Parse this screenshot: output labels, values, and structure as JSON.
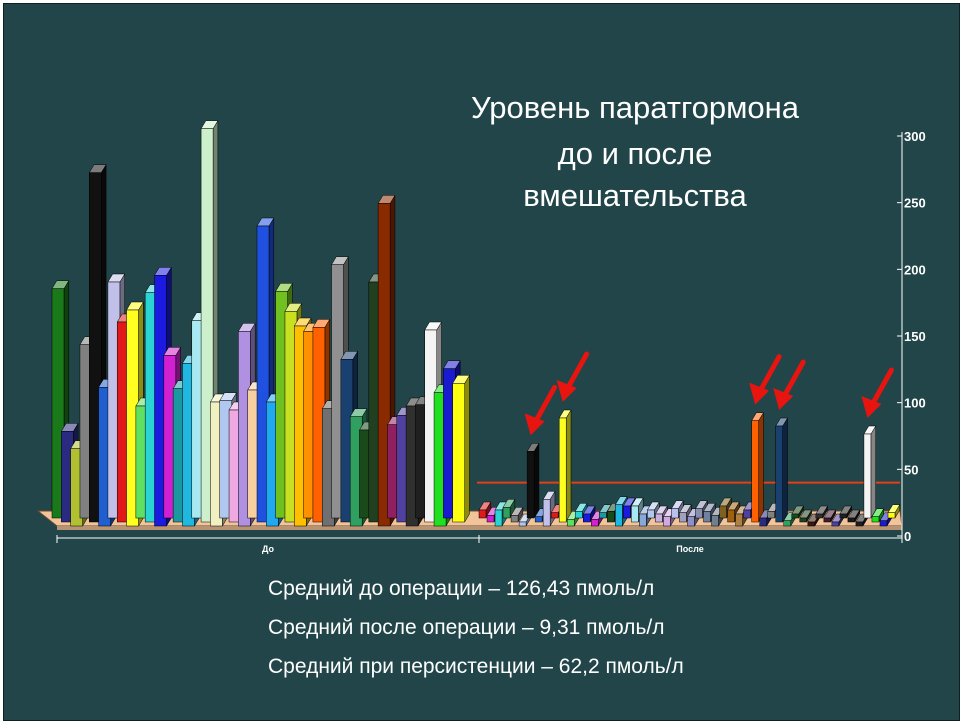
{
  "slide": {
    "title_lines": [
      "Уровень паратгормона",
      "до и после",
      "вмешательства"
    ],
    "stats": [
      "Средний до операции – 126,43 пмоль/л",
      "Средний после операции – 9,31 пмоль/л",
      "Средний при персистенции – 62,2 пмоль/л"
    ],
    "colors": {
      "background": "#214548",
      "floor": "#f2c49a",
      "threshold": "#e0401a",
      "arrow": "#e8140f",
      "axis": "#ffffff"
    }
  },
  "chart_data": {
    "type": "bar",
    "categories": [
      "До",
      "После"
    ],
    "ylim": [
      0,
      300
    ],
    "yticks": [
      0,
      50,
      100,
      150,
      200,
      250,
      300
    ],
    "threshold": 37,
    "series_groups": [
      {
        "category": "До",
        "values": [
          172,
          68,
          58,
          130,
          262,
          104,
          177,
          150,
          162,
          84,
          172,
          188,
          122,
          100,
          122,
          148,
          295,
          93,
          88,
          84,
          146,
          96,
          222,
          93,
          170,
          158,
          150,
          140,
          146,
          88,
          190,
          122,
          82,
          66,
          180,
          242,
          70,
          80,
          90,
          85,
          144,
          100,
          112,
          104
        ],
        "colors": [
          "#1a7a1a",
          "#2a2a80",
          "#b0c030",
          "#808080",
          "#111111",
          "#1f5fd0",
          "#c0c0e8",
          "#e01a1a",
          "#ffff20",
          "#60e060",
          "#2ad4d4",
          "#1a1ae0",
          "#d020d0",
          "#1a9aa0",
          "#20b8e0",
          "#a8e8f0",
          "#ccf0cc",
          "#f0f0c0",
          "#b0c8f0",
          "#f0a8e0",
          "#b090e0",
          "#f8d0a0",
          "#2050e0",
          "#20a8f0",
          "#70c020",
          "#c8e020",
          "#ffc000",
          "#ff9000",
          "#ff6000",
          "#707070",
          "#909090",
          "#1a4070",
          "#30a060",
          "#1a4a1a",
          "#204020",
          "#8a2a00",
          "#902060",
          "#5040a0",
          "#303030",
          "#202020",
          "#f4f4f4",
          "#20e020",
          "#1a1ad0",
          "#ffff10"
        ]
      },
      {
        "category": "После",
        "values": [
          6,
          5,
          12,
          8,
          5,
          3,
          50,
          4,
          20,
          4,
          78,
          5,
          5,
          6,
          5,
          4,
          8,
          16,
          9,
          12,
          9,
          6,
          6,
          7,
          7,
          7,
          7,
          7,
          8,
          8,
          9,
          9,
          9,
          6,
          76,
          6,
          5,
          72,
          4,
          3,
          3,
          3,
          3,
          3,
          3,
          3,
          3,
          3,
          63,
          4,
          4,
          4
        ],
        "colors": [
          "#e01a1a",
          "#d020d0",
          "#2ad4d4",
          "#30a060",
          "#808080",
          "#b0c8f0",
          "#111111",
          "#1f5fd0",
          "#c0c0e8",
          "#e01a1a",
          "#ffff20",
          "#60e060",
          "#2ad4d4",
          "#1a1ae0",
          "#d020d0",
          "#1a9aa0",
          "#1a4a1a",
          "#20b8e0",
          "#1a1ae0",
          "#a8e8f0",
          "#88a8d8",
          "#b0c8f0",
          "#c8b0e0",
          "#d0a8e8",
          "#b8c0f0",
          "#a0a0c0",
          "#9090c8",
          "#8890b0",
          "#7080a0",
          "#708090",
          "#806020",
          "#a06010",
          "#b08040",
          "#5040a0",
          "#ff6000",
          "#2a2a80",
          "#808080",
          "#1a4070",
          "#30a060",
          "#1a4a1a",
          "#204020",
          "#3a1a10",
          "#303030",
          "#401a30",
          "#5040a0",
          "#202020",
          "#1a1a1a",
          "#202020",
          "#f4f4f4",
          "#20e020",
          "#1a1ad0",
          "#ffff10"
        ]
      }
    ],
    "highlighted": [
      {
        "category": "После",
        "index": 6
      },
      {
        "category": "После",
        "index": 10
      },
      {
        "category": "После",
        "index": 34
      },
      {
        "category": "После",
        "index": 37
      },
      {
        "category": "После",
        "index": 48
      }
    ],
    "legend": "none"
  }
}
